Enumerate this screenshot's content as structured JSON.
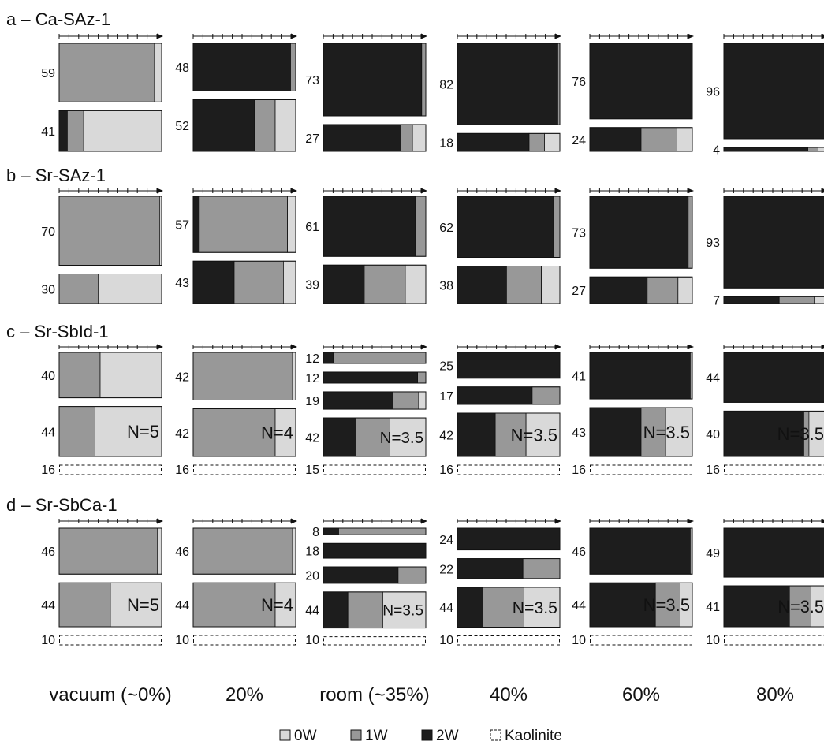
{
  "colors": {
    "W0": "#d9d9d9",
    "W1": "#989898",
    "W2": "#1d1d1d"
  },
  "groups": [
    {
      "title": "a – Ca-SAz-1",
      "panels": [
        {
          "layers": [
            {
              "pct": 59,
              "label": "59",
              "W2": 0,
              "W1": 0.93,
              "W0": 0.07
            },
            {
              "pct": 41,
              "label": "41",
              "W2": 0.08,
              "W1": 0.16,
              "W0": 0.76
            }
          ]
        },
        {
          "layers": [
            {
              "pct": 48,
              "label": "48",
              "W2": 0.95,
              "W1": 0.05,
              "W0": 0
            },
            {
              "pct": 52,
              "label": "52",
              "W2": 0.6,
              "W1": 0.2,
              "W0": 0.2
            }
          ]
        },
        {
          "layers": [
            {
              "pct": 73,
              "label": "73",
              "W2": 0.96,
              "W1": 0.04,
              "W0": 0
            },
            {
              "pct": 27,
              "label": "27",
              "W2": 0.75,
              "W1": 0.12,
              "W0": 0.13
            }
          ]
        },
        {
          "layers": [
            {
              "pct": 82,
              "label": "82",
              "W2": 0.98,
              "W1": 0.02,
              "W0": 0
            },
            {
              "pct": 18,
              "label": "18",
              "W2": 0.7,
              "W1": 0.15,
              "W0": 0.15
            }
          ]
        },
        {
          "layers": [
            {
              "pct": 76,
              "label": "76",
              "W2": 1,
              "W1": 0,
              "W0": 0
            },
            {
              "pct": 24,
              "label": "24",
              "W2": 0.5,
              "W1": 0.35,
              "W0": 0.15
            }
          ]
        },
        {
          "layers": [
            {
              "pct": 96,
              "label": "96",
              "W2": 1,
              "W1": 0,
              "W0": 0
            },
            {
              "pct": 4,
              "label": "4",
              "W2": 0.82,
              "W1": 0.1,
              "W0": 0.08
            }
          ]
        }
      ]
    },
    {
      "title": "b – Sr-SAz-1",
      "panels": [
        {
          "layers": [
            {
              "pct": 70,
              "label": "70",
              "W2": 0,
              "W1": 0.98,
              "W0": 0.02
            },
            {
              "pct": 30,
              "label": "30",
              "W2": 0,
              "W1": 0.38,
              "W0": 0.62
            }
          ]
        },
        {
          "layers": [
            {
              "pct": 57,
              "label": "57",
              "W2": 0.06,
              "W1": 0.86,
              "W0": 0.08
            },
            {
              "pct": 43,
              "label": "43",
              "W2": 0.4,
              "W1": 0.48,
              "W0": 0.12
            }
          ]
        },
        {
          "layers": [
            {
              "pct": 61,
              "label": "61",
              "W2": 0.9,
              "W1": 0.1,
              "W0": 0
            },
            {
              "pct": 39,
              "label": "39",
              "W2": 0.4,
              "W1": 0.4,
              "W0": 0.2
            }
          ]
        },
        {
          "layers": [
            {
              "pct": 62,
              "label": "62",
              "W2": 0.94,
              "W1": 0.06,
              "W0": 0
            },
            {
              "pct": 38,
              "label": "38",
              "W2": 0.48,
              "W1": 0.34,
              "W0": 0.18
            }
          ]
        },
        {
          "layers": [
            {
              "pct": 73,
              "label": "73",
              "W2": 0.96,
              "W1": 0.04,
              "W0": 0
            },
            {
              "pct": 27,
              "label": "27",
              "W2": 0.56,
              "W1": 0.3,
              "W0": 0.14
            }
          ]
        },
        {
          "layers": [
            {
              "pct": 93,
              "label": "93",
              "W2": 0.99,
              "W1": 0.01,
              "W0": 0
            },
            {
              "pct": 7,
              "label": "7",
              "W2": 0.54,
              "W1": 0.34,
              "W0": 0.12
            }
          ]
        }
      ]
    },
    {
      "title": "c – Sr-SbId-1",
      "panels": [
        {
          "layers": [
            {
              "pct": 40,
              "label": "40",
              "W2": 0,
              "W1": 0.4,
              "W0": 0.6
            },
            {
              "pct": 44,
              "label": "44",
              "W2": 0,
              "W1": 0.35,
              "W0": 0.65,
              "note": "N=5"
            },
            {
              "pct": 16,
              "label": "16",
              "kaolinite": true
            }
          ]
        },
        {
          "layers": [
            {
              "pct": 42,
              "label": "42",
              "W2": 0,
              "W1": 0.97,
              "W0": 0.03
            },
            {
              "pct": 42,
              "label": "42",
              "W2": 0,
              "W1": 0.8,
              "W0": 0.2,
              "note": "N=4"
            },
            {
              "pct": 16,
              "label": "16",
              "kaolinite": true
            }
          ]
        },
        {
          "layers": [
            {
              "pct": 12,
              "label": "12",
              "W2": 0.1,
              "W1": 0.9,
              "W0": 0
            },
            {
              "pct": 12,
              "label": "12",
              "W2": 0.92,
              "W1": 0.08,
              "W0": 0
            },
            {
              "pct": 19,
              "label": "19",
              "W2": 0.68,
              "W1": 0.25,
              "W0": 0.07
            },
            {
              "pct": 42,
              "label": "42",
              "W2": 0.32,
              "W1": 0.33,
              "W0": 0.35,
              "note": "N=3.5"
            },
            {
              "pct": 15,
              "label": "15",
              "kaolinite": true
            }
          ]
        },
        {
          "layers": [
            {
              "pct": 25,
              "label": "25",
              "W2": 1,
              "W1": 0,
              "W0": 0
            },
            {
              "pct": 17,
              "label": "17",
              "W2": 0.73,
              "W1": 0.27,
              "W0": 0
            },
            {
              "pct": 42,
              "label": "42",
              "W2": 0.37,
              "W1": 0.3,
              "W0": 0.33,
              "note": "N=3.5"
            },
            {
              "pct": 16,
              "label": "16",
              "kaolinite": true
            }
          ]
        },
        {
          "layers": [
            {
              "pct": 41,
              "label": "41",
              "W2": 0.98,
              "W1": 0.02,
              "W0": 0
            },
            {
              "pct": 43,
              "label": "43",
              "W2": 0.5,
              "W1": 0.24,
              "W0": 0.26,
              "note": "N=3.5"
            },
            {
              "pct": 16,
              "label": "16",
              "kaolinite": true
            }
          ]
        },
        {
          "layers": [
            {
              "pct": 44,
              "label": "44",
              "W2": 1,
              "W1": 0,
              "W0": 0
            },
            {
              "pct": 40,
              "label": "40",
              "W2": 0.78,
              "W1": 0.05,
              "W0": 0.17,
              "note": "N=3.5"
            },
            {
              "pct": 16,
              "label": "16",
              "kaolinite": true
            }
          ]
        }
      ]
    },
    {
      "title": "d  – Sr-SbCa-1",
      "panels": [
        {
          "layers": [
            {
              "pct": 46,
              "label": "46",
              "W2": 0,
              "W1": 0.96,
              "W0": 0.04
            },
            {
              "pct": 44,
              "label": "44",
              "W2": 0,
              "W1": 0.5,
              "W0": 0.5,
              "note": "N=5"
            },
            {
              "pct": 10,
              "label": "10",
              "kaolinite": true
            }
          ]
        },
        {
          "layers": [
            {
              "pct": 46,
              "label": "46",
              "W2": 0,
              "W1": 0.97,
              "W0": 0.03
            },
            {
              "pct": 44,
              "label": "44",
              "W2": 0,
              "W1": 0.8,
              "W0": 0.2,
              "note": "N=4"
            },
            {
              "pct": 10,
              "label": "10",
              "kaolinite": true
            }
          ]
        },
        {
          "layers": [
            {
              "pct": 8,
              "label": "8",
              "W2": 0.15,
              "W1": 0.85,
              "W0": 0
            },
            {
              "pct": 18,
              "label": "18",
              "W2": 1,
              "W1": 0,
              "W0": 0
            },
            {
              "pct": 20,
              "label": "20",
              "W2": 0.73,
              "W1": 0.27,
              "W0": 0
            },
            {
              "pct": 44,
              "label": "44",
              "W2": 0.24,
              "W1": 0.34,
              "W0": 0.42,
              "note": "N=3.5"
            },
            {
              "pct": 10,
              "label": "10",
              "kaolinite": true
            }
          ]
        },
        {
          "layers": [
            {
              "pct": 24,
              "label": "24",
              "W2": 1,
              "W1": 0,
              "W0": 0
            },
            {
              "pct": 22,
              "label": "22",
              "W2": 0.64,
              "W1": 0.36,
              "W0": 0
            },
            {
              "pct": 44,
              "label": "44",
              "W2": 0.25,
              "W1": 0.4,
              "W0": 0.35,
              "note": "N=3.5"
            },
            {
              "pct": 10,
              "label": "10",
              "kaolinite": true
            }
          ]
        },
        {
          "layers": [
            {
              "pct": 46,
              "label": "46",
              "W2": 0.98,
              "W1": 0.02,
              "W0": 0
            },
            {
              "pct": 44,
              "label": "44",
              "W2": 0.64,
              "W1": 0.24,
              "W0": 0.12,
              "note": "N=3.5"
            },
            {
              "pct": 10,
              "label": "10",
              "kaolinite": true
            }
          ]
        },
        {
          "layers": [
            {
              "pct": 49,
              "label": "49",
              "W2": 1,
              "W1": 0,
              "W0": 0
            },
            {
              "pct": 41,
              "label": "41",
              "W2": 0.64,
              "W1": 0.21,
              "W0": 0.15,
              "note": "N=3.5"
            },
            {
              "pct": 10,
              "label": "10",
              "kaolinite": true
            }
          ]
        }
      ]
    }
  ],
  "conditions": [
    "vacuum (~0%)",
    "20%",
    "room (~35%)",
    "40%",
    "60%",
    "80%"
  ],
  "legend": [
    {
      "key": "W0",
      "label": "0W"
    },
    {
      "key": "W1",
      "label": "1W"
    },
    {
      "key": "W2",
      "label": "2W"
    },
    {
      "key": "kaolinite",
      "label": "Kaolinite"
    }
  ]
}
